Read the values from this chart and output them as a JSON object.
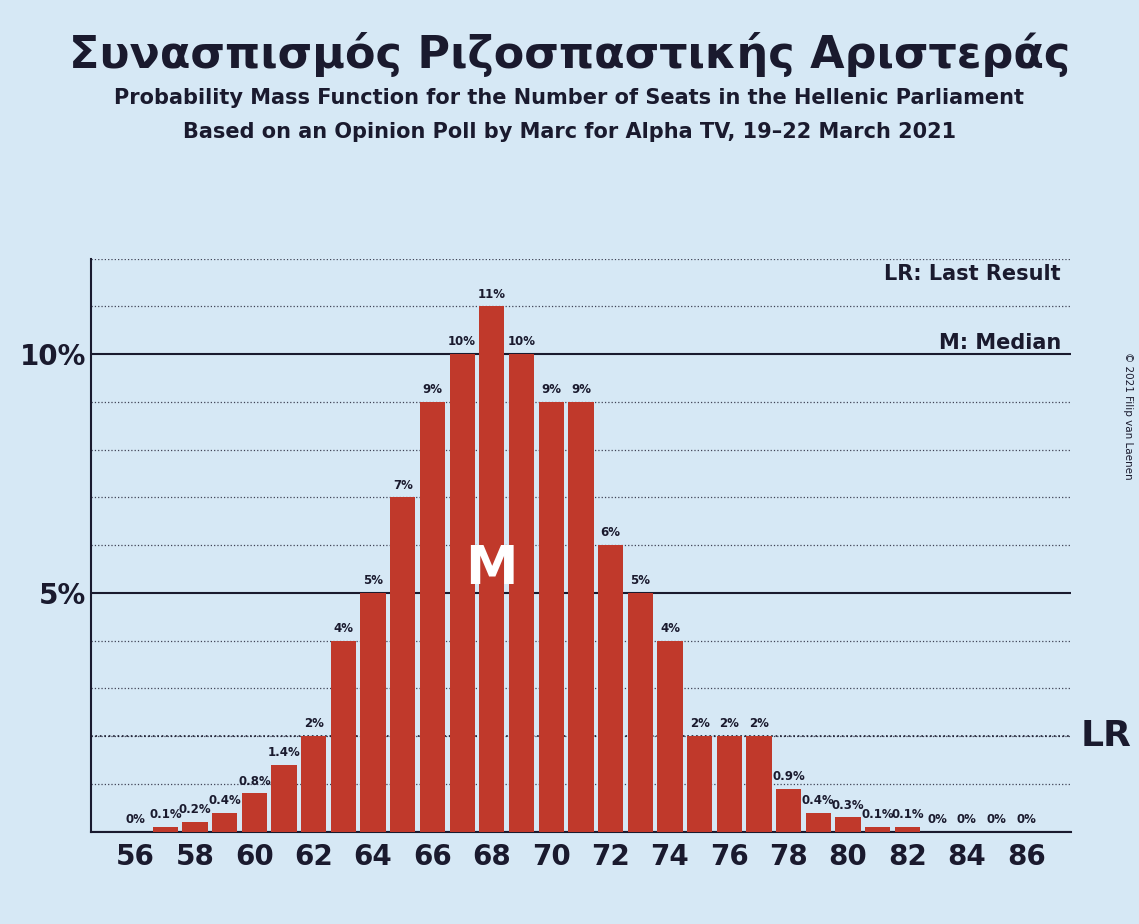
{
  "title_greek": "Συνασπισμός Ριζοσπαστικής Αριστεράς",
  "subtitle1": "Probability Mass Function for the Number of Seats in the Hellenic Parliament",
  "subtitle2": "Based on an Opinion Poll by Marc for Alpha TV, 19–22 March 2021",
  "copyright": "© 2021 Filip van Laenen",
  "legend1": "LR: Last Result",
  "legend2": "M: Median",
  "median_label": "M",
  "lr_label": "LR",
  "seats": [
    56,
    57,
    58,
    59,
    60,
    61,
    62,
    63,
    64,
    65,
    66,
    67,
    68,
    69,
    70,
    71,
    72,
    73,
    74,
    75,
    76,
    77,
    78,
    79,
    80,
    81,
    82,
    83,
    84,
    85,
    86
  ],
  "probabilities": [
    0.0,
    0.1,
    0.2,
    0.4,
    0.8,
    1.4,
    2.0,
    4.0,
    5.0,
    7.0,
    9.0,
    10.0,
    11.0,
    10.0,
    9.0,
    9.0,
    6.0,
    5.0,
    4.0,
    2.0,
    2.0,
    2.0,
    0.9,
    0.4,
    0.3,
    0.1,
    0.1,
    0.0,
    0.0,
    0.0,
    0.0
  ],
  "bar_color": "#c0392b",
  "background_color": "#d6e8f5",
  "text_color": "#1a1a2e",
  "median_seat": 68,
  "lr_seat": 77,
  "lr_value": 2.0,
  "ylim": [
    0,
    12
  ],
  "xlim": [
    54.5,
    87.5
  ]
}
